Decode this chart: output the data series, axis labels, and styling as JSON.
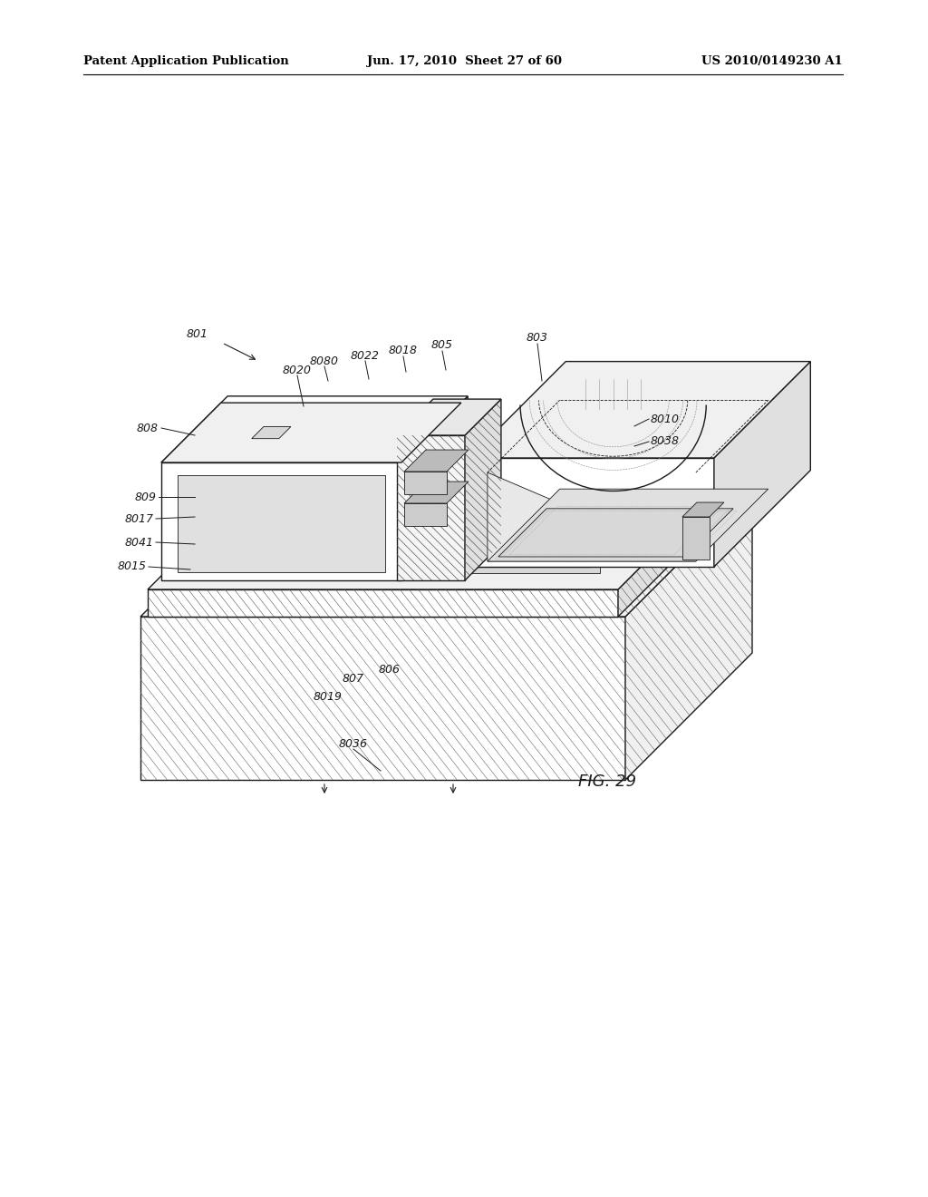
{
  "bg_color": "#ffffff",
  "header_left": "Patent Application Publication",
  "header_center": "Jun. 17, 2010  Sheet 27 of 60",
  "header_right": "US 2010/0149230 A1",
  "figure_label": "FIG. 29",
  "title_fontsize": 9.5,
  "label_fontsize": 9,
  "fig_label_fontsize": 13,
  "line_color": "#1a1a1a",
  "hatch_color": "#444444",
  "face_white": "#ffffff",
  "face_light": "#f0f0f0",
  "face_mid": "#e0e0e0",
  "face_dark": "#cccccc",
  "face_xdark": "#b0b0b0"
}
